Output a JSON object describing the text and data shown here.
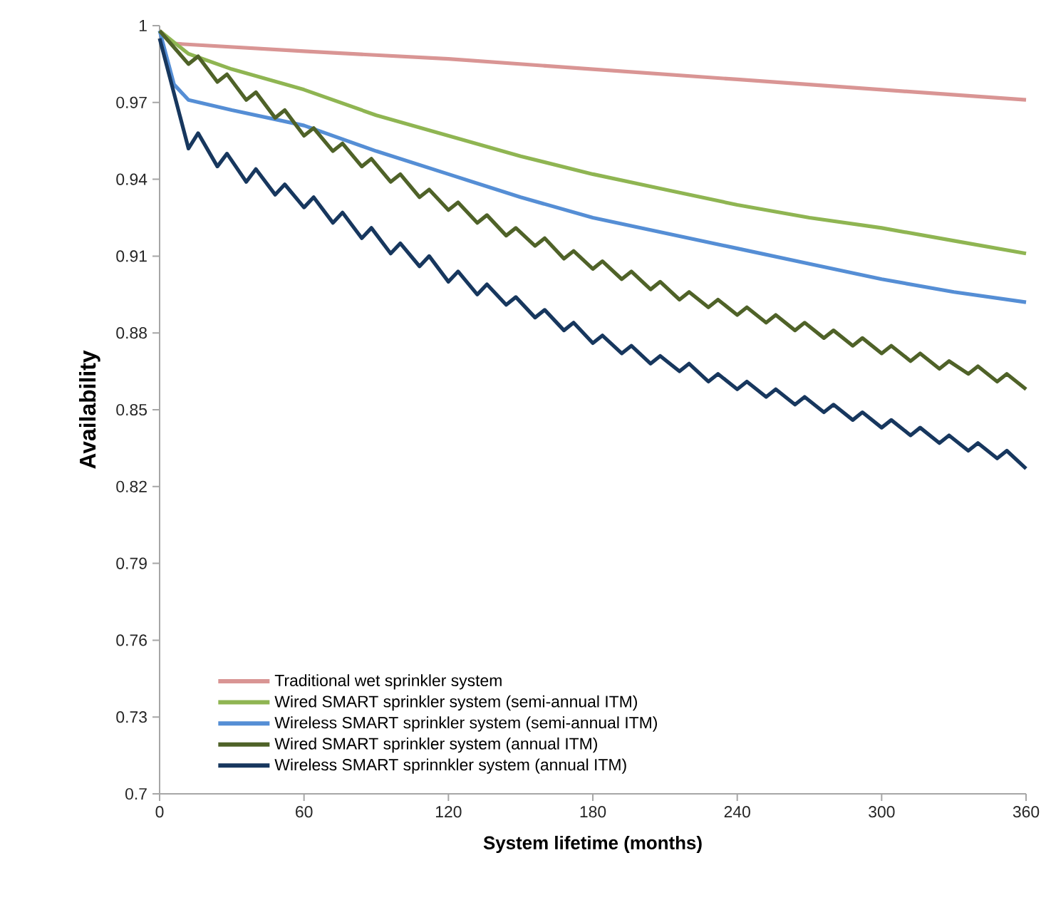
{
  "chart_data": {
    "type": "line",
    "xlabel": "System lifetime (months)",
    "ylabel": "Availability",
    "xlim": [
      0,
      360
    ],
    "ylim": [
      0.7,
      1
    ],
    "xticks": [
      0,
      60,
      120,
      180,
      240,
      300,
      360
    ],
    "yticks": [
      0.7,
      0.73,
      0.76,
      0.79,
      0.82,
      0.85,
      0.88,
      0.91,
      0.94,
      0.97,
      1
    ],
    "grid": false,
    "legend": "bottom left",
    "marker": "none",
    "line_style": "solid",
    "series": [
      {
        "name": "Traditional wet sprinkler system",
        "color": "#d99594",
        "x": [
          0,
          6,
          60,
          120,
          180,
          240,
          300,
          360
        ],
        "values": [
          0.998,
          0.993,
          0.99,
          0.987,
          0.983,
          0.979,
          0.975,
          0.971
        ]
      },
      {
        "name": "Wired SMART sprinkler system (semi-annual ITM)",
        "color": "#8fb552",
        "x": [
          0,
          12,
          30,
          60,
          90,
          120,
          150,
          180,
          210,
          240,
          270,
          300,
          330,
          360
        ],
        "values": [
          0.998,
          0.989,
          0.983,
          0.975,
          0.965,
          0.957,
          0.949,
          0.942,
          0.936,
          0.93,
          0.925,
          0.921,
          0.916,
          0.911
        ]
      },
      {
        "name": "Wireless SMART sprinkler system (semi-annual ITM)",
        "color": "#558ed5",
        "x": [
          0,
          6,
          12,
          30,
          60,
          90,
          120,
          150,
          180,
          210,
          240,
          270,
          300,
          330,
          360
        ],
        "values": [
          0.998,
          0.977,
          0.971,
          0.967,
          0.961,
          0.951,
          0.942,
          0.933,
          0.925,
          0.919,
          0.913,
          0.907,
          0.901,
          0.896,
          0.892
        ]
      },
      {
        "name": "Wired SMART sprinkler system (annual ITM)",
        "color": "#4f6228",
        "x": [
          0,
          12,
          16,
          24,
          28,
          36,
          40,
          48,
          52,
          60,
          64,
          72,
          76,
          84,
          88,
          96,
          100,
          108,
          112,
          120,
          124,
          132,
          136,
          144,
          148,
          156,
          160,
          168,
          172,
          180,
          184,
          192,
          196,
          204,
          208,
          216,
          220,
          228,
          232,
          240,
          244,
          252,
          256,
          264,
          268,
          276,
          280,
          288,
          292,
          300,
          304,
          312,
          316,
          324,
          328,
          336,
          340,
          348,
          352,
          360
        ],
        "values": [
          0.998,
          0.985,
          0.988,
          0.978,
          0.981,
          0.971,
          0.974,
          0.964,
          0.967,
          0.957,
          0.96,
          0.951,
          0.954,
          0.945,
          0.948,
          0.939,
          0.942,
          0.933,
          0.936,
          0.928,
          0.931,
          0.923,
          0.926,
          0.918,
          0.921,
          0.914,
          0.917,
          0.909,
          0.912,
          0.905,
          0.908,
          0.901,
          0.904,
          0.897,
          0.9,
          0.893,
          0.896,
          0.89,
          0.893,
          0.887,
          0.89,
          0.884,
          0.887,
          0.881,
          0.884,
          0.878,
          0.881,
          0.875,
          0.878,
          0.872,
          0.875,
          0.869,
          0.872,
          0.866,
          0.869,
          0.864,
          0.867,
          0.861,
          0.864,
          0.858
        ]
      },
      {
        "name": "Wireless SMART sprinnkler system (annual ITM)",
        "color": "#17375e",
        "x": [
          0,
          12,
          16,
          24,
          28,
          36,
          40,
          48,
          52,
          60,
          64,
          72,
          76,
          84,
          88,
          96,
          100,
          108,
          112,
          120,
          124,
          132,
          136,
          144,
          148,
          156,
          160,
          168,
          172,
          180,
          184,
          192,
          196,
          204,
          208,
          216,
          220,
          228,
          232,
          240,
          244,
          252,
          256,
          264,
          268,
          276,
          280,
          288,
          292,
          300,
          304,
          312,
          316,
          324,
          328,
          336,
          340,
          348,
          352,
          360
        ],
        "values": [
          0.995,
          0.952,
          0.958,
          0.945,
          0.95,
          0.939,
          0.944,
          0.934,
          0.938,
          0.929,
          0.933,
          0.923,
          0.927,
          0.917,
          0.921,
          0.911,
          0.915,
          0.906,
          0.91,
          0.9,
          0.904,
          0.895,
          0.899,
          0.891,
          0.894,
          0.886,
          0.889,
          0.881,
          0.884,
          0.876,
          0.879,
          0.872,
          0.875,
          0.868,
          0.871,
          0.865,
          0.868,
          0.861,
          0.864,
          0.858,
          0.861,
          0.855,
          0.858,
          0.852,
          0.855,
          0.849,
          0.852,
          0.846,
          0.849,
          0.843,
          0.846,
          0.84,
          0.843,
          0.837,
          0.84,
          0.834,
          0.837,
          0.831,
          0.834,
          0.827
        ]
      }
    ]
  }
}
